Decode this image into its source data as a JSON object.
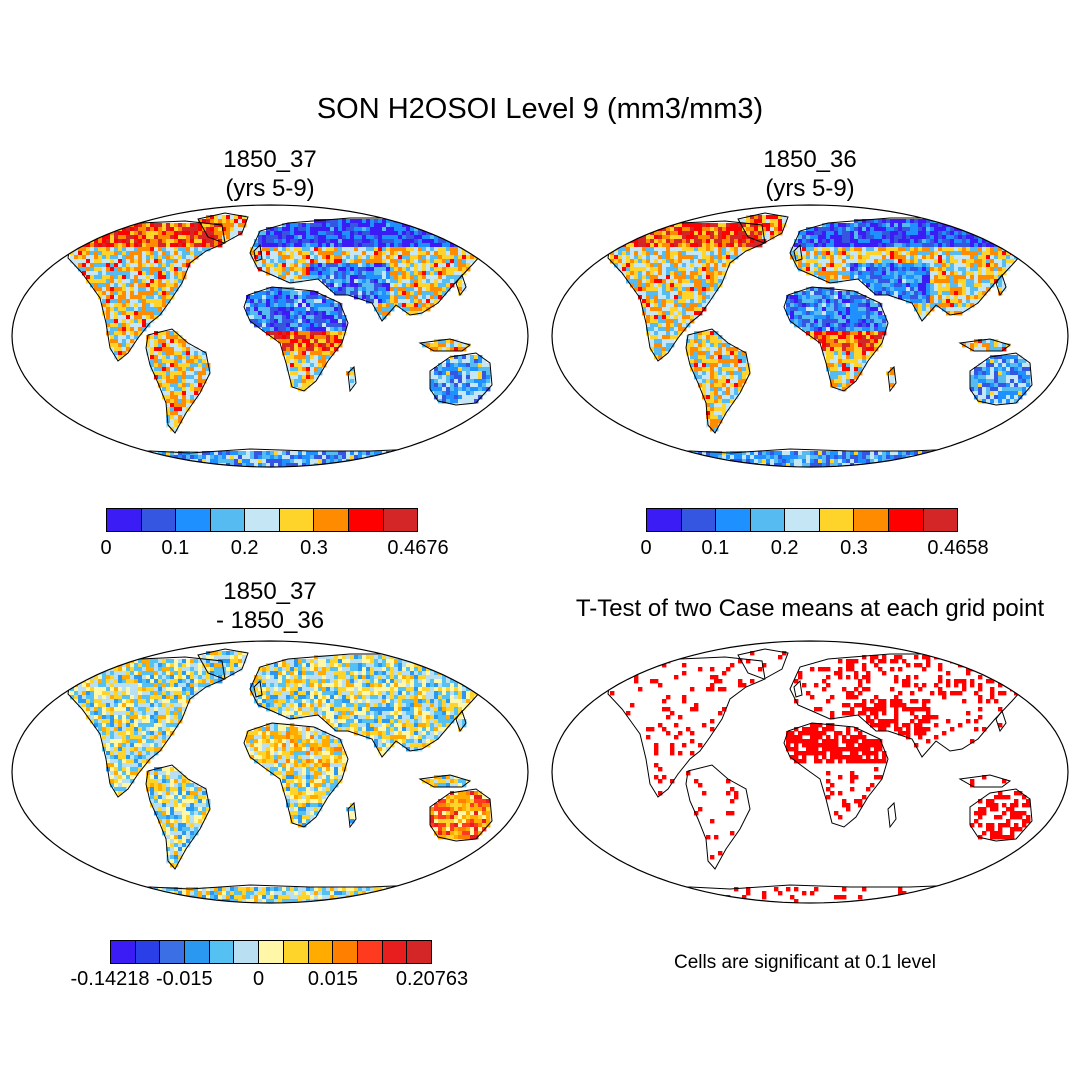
{
  "title": "SON H2OSOI Level 9 (mm3/mm3)",
  "panels": {
    "case1": {
      "title_line1": "1850_37",
      "title_line2": "(yrs 5-9)",
      "colorbar": {
        "colors": [
          "#3b1cf5",
          "#3556e0",
          "#1e90ff",
          "#55bbf0",
          "#c4e6f5",
          "#ffd42a",
          "#ff8c00",
          "#ff0000",
          "#d42626"
        ],
        "ticks": [
          "0",
          "0.1",
          "0.2",
          "0.3",
          "0.4676"
        ]
      }
    },
    "case2": {
      "title_line1": "1850_36",
      "title_line2": "(yrs 5-9)",
      "colorbar": {
        "colors": [
          "#3b1cf5",
          "#3556e0",
          "#1e90ff",
          "#55bbf0",
          "#c4e6f5",
          "#ffd42a",
          "#ff8c00",
          "#ff0000",
          "#d42626"
        ],
        "ticks": [
          "0",
          "0.1",
          "0.2",
          "0.3",
          "0.4658"
        ]
      }
    },
    "diff": {
      "title_line1": "1850_37",
      "title_line2": "- 1850_36",
      "colorbar": {
        "colors": [
          "#3b1cf5",
          "#2a3fe8",
          "#3a6fe6",
          "#2a98f0",
          "#55c0f2",
          "#b8e0f2",
          "#fff7a8",
          "#ffd42a",
          "#ffab00",
          "#ff8000",
          "#ff3b1f",
          "#e81e1e",
          "#d42626"
        ],
        "ticks": [
          "-0.14218",
          "-0.015",
          "0",
          "0.015",
          "0.20763"
        ]
      }
    },
    "ttest": {
      "title": "T-Test of two Case means at each grid point",
      "note": "Cells are significant at 0.1 level",
      "sig_color": "#ff0000"
    }
  }
}
